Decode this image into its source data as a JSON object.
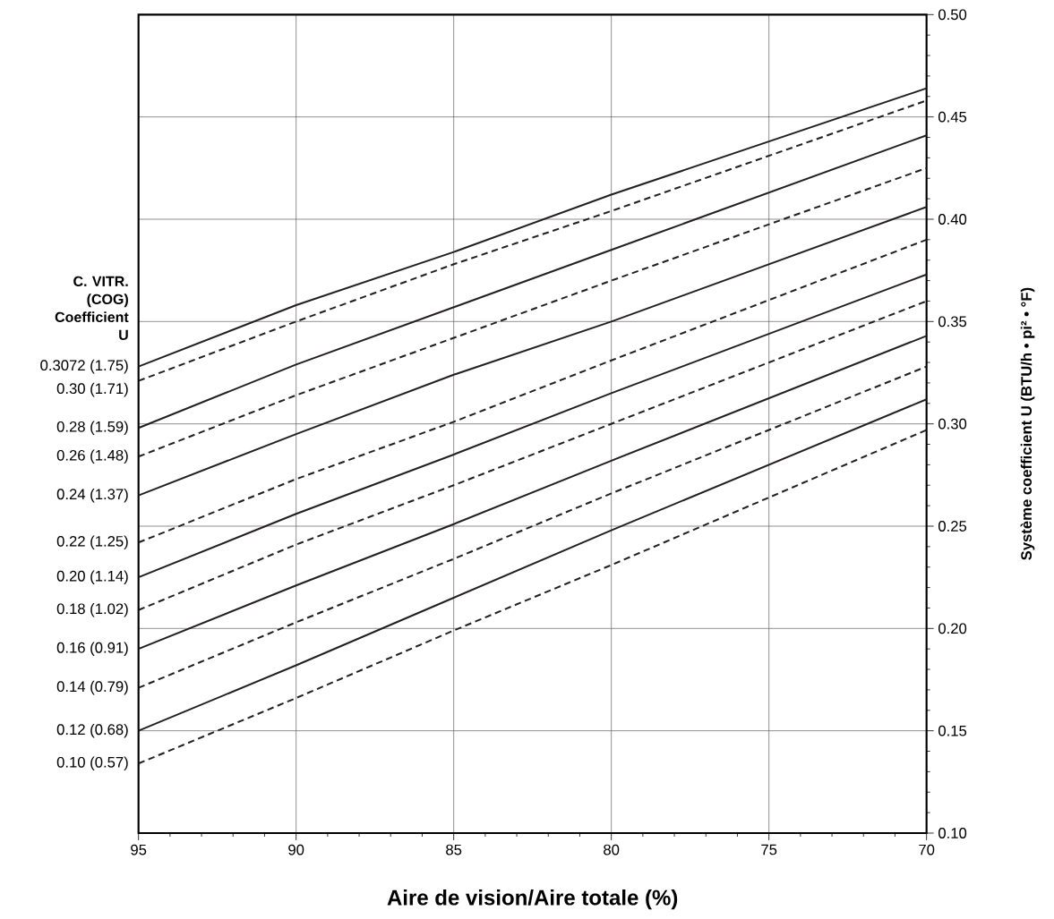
{
  "chart_data": {
    "type": "line",
    "xlabel": "Aire de vision/Aire totale (%)",
    "ylabel": "Système coefficient U (BTU/h • pi² • °F)",
    "legend_title": "C. VITR. (COG) Coefficient U",
    "x": [
      95,
      90,
      85,
      80,
      70
    ],
    "xlim": [
      95,
      70
    ],
    "xticks": [
      95,
      90,
      85,
      80,
      75,
      70
    ],
    "ylim": [
      0.1,
      0.5
    ],
    "yticks": [
      {
        "value": 0.1,
        "label": "0.10"
      },
      0.15,
      {
        "value": 0.2,
        "label": "0.20"
      },
      0.25,
      {
        "value": 0.3,
        "label": "0.30"
      },
      0.35,
      {
        "value": 0.4,
        "label": "0.40"
      },
      0.45,
      {
        "value": 0.5,
        "label": "0.50"
      }
    ],
    "grid": true,
    "legend": false,
    "marker": "none",
    "series": [
      {
        "name": "0.3072 (1.75)",
        "color": "#231f20",
        "line_style": "solid",
        "values": [
          0.328,
          0.358,
          0.384,
          0.412,
          0.464
        ]
      },
      {
        "name": "0.30 (1.71)",
        "color": "#231f20",
        "line_style": "dashed",
        "values": [
          0.321,
          0.35,
          0.378,
          0.404,
          0.458
        ]
      },
      {
        "name": "0.28 (1.59)",
        "color": "#231f20",
        "line_style": "solid",
        "values": [
          0.298,
          0.329,
          0.357,
          0.385,
          0.441
        ]
      },
      {
        "name": "0.26 (1.48)",
        "color": "#231f20",
        "line_style": "dashed",
        "values": [
          0.284,
          0.314,
          0.342,
          0.37,
          0.425
        ]
      },
      {
        "name": "0.24 (1.37)",
        "color": "#231f20",
        "line_style": "solid",
        "values": [
          0.265,
          0.295,
          0.324,
          0.35,
          0.406
        ]
      },
      {
        "name": "0.22 (1.25)",
        "color": "#231f20",
        "line_style": "dashed",
        "values": [
          0.242,
          0.273,
          0.301,
          0.331,
          0.39
        ]
      },
      {
        "name": "0.20 (1.14)",
        "color": "#231f20",
        "line_style": "solid",
        "values": [
          0.225,
          0.256,
          0.285,
          0.315,
          0.373
        ]
      },
      {
        "name": "0.18 (1.02)",
        "color": "#231f20",
        "line_style": "dashed",
        "values": [
          0.209,
          0.241,
          0.27,
          0.3,
          0.36
        ]
      },
      {
        "name": "0.16 (0.91)",
        "color": "#231f20",
        "line_style": "solid",
        "values": [
          0.19,
          0.221,
          0.251,
          0.282,
          0.343
        ]
      },
      {
        "name": "0.14 (0.79)",
        "color": "#231f20",
        "line_style": "dashed",
        "values": [
          0.171,
          0.203,
          0.234,
          0.266,
          0.328
        ]
      },
      {
        "name": "0.12 (0.68)",
        "color": "#231f20",
        "line_style": "solid",
        "values": [
          0.15,
          0.182,
          0.215,
          0.248,
          0.312
        ]
      },
      {
        "name": "0.10 (0.57)",
        "color": "#231f20",
        "line_style": "dashed",
        "values": [
          0.134,
          0.166,
          0.199,
          0.231,
          0.297
        ]
      }
    ]
  }
}
